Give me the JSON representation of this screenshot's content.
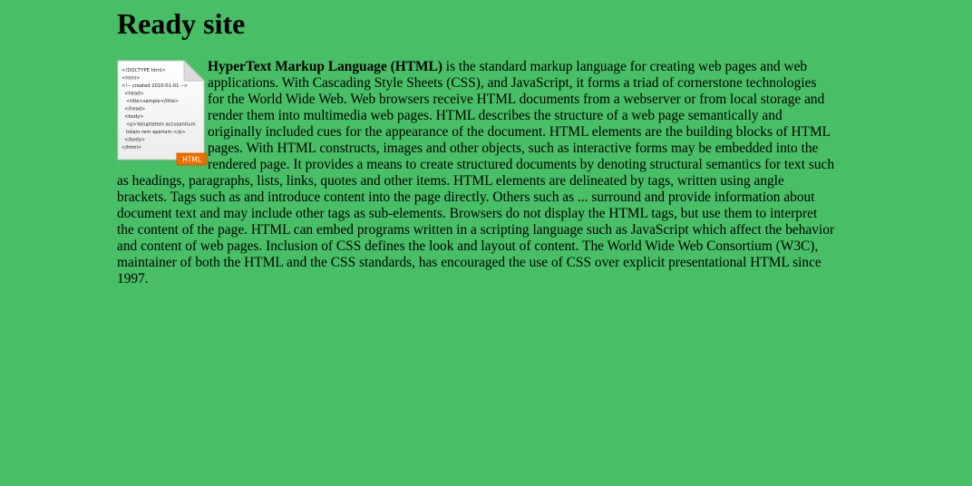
{
  "site": {
    "title": "Ready site"
  },
  "article": {
    "term": "HyperText Markup Language (HTML)",
    "body": " is the standard markup language for creating web pages and web applications. With Cascading Style Sheets (CSS), and JavaScript, it forms a triad of cornerstone technologies for the World Wide Web. Web browsers receive HTML documents from a webserver or from local storage and render them into multimedia web pages. HTML describes the structure of a web page semantically and originally included cues for the appearance of the document. HTML elements are the building blocks of HTML pages. With HTML constructs, images and other objects, such as interactive forms may be embedded into the rendered page. It provides a means to create structured documents by denoting structural semantics for text such as headings, paragraphs, lists, links, quotes and other items. HTML elements are delineated by tags, written using angle brackets. Tags such as and introduce content into the page directly. Others such as ... surround and provide information about document text and may include other tags as sub-elements. Browsers do not display the HTML tags, but use them to interpret the content of the page. HTML can embed programs written in a scripting language such as JavaScript which affect the behavior and content of web pages. Inclusion of CSS defines the look and layout of content. The World Wide Web Consortium (W3C), maintainer of both the HTML and the CSS standards, has encouraged the use of CSS over explicit presentational HTML since 1997."
  },
  "icon": {
    "name": "html-document-icon",
    "badge": "HTML",
    "badge_color": "#f06d00",
    "code_lines": [
      "<!DOCTYPE html>",
      "<html>",
      "<!-- created 2010-01-01 -->",
      "<head>",
      "<title>sample</title>",
      "</head>",
      "<body>",
      "<p>Voluptatem accusantium",
      "totam rem aperiam.</p>",
      "</body>",
      "</html>"
    ]
  },
  "colors": {
    "background": "#48bf66",
    "text": "#000000"
  }
}
